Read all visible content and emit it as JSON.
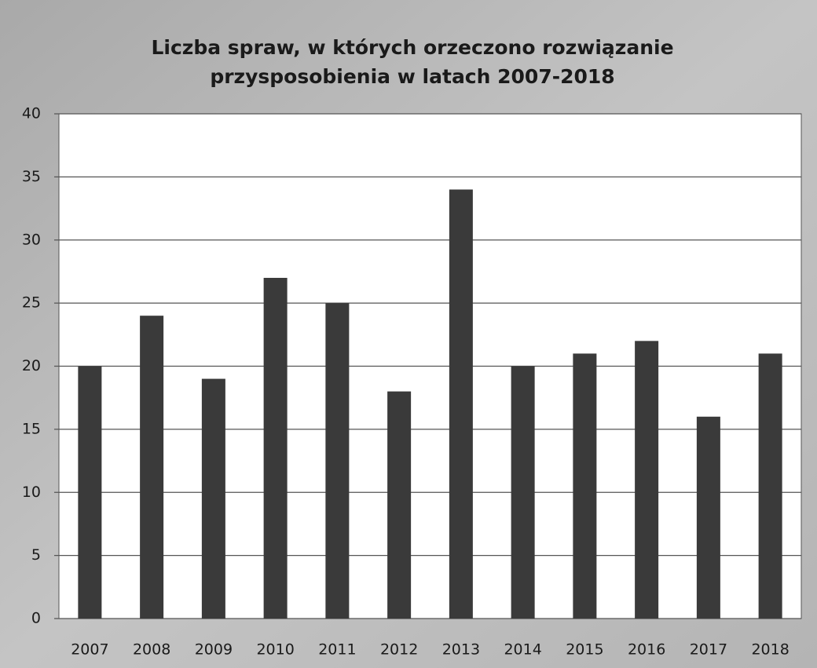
{
  "chart_data": {
    "type": "bar",
    "title": [
      "Liczba spraw, w których orzeczono rozwiązanie",
      "przysposobienia w latach 2007-2018"
    ],
    "categories": [
      "2007",
      "2008",
      "2009",
      "2010",
      "2011",
      "2012",
      "2013",
      "2014",
      "2015",
      "2016",
      "2017",
      "2018"
    ],
    "values": [
      20,
      24,
      19,
      27,
      25,
      18,
      34,
      20,
      21,
      22,
      16,
      21
    ],
    "color": "#3a3a3a",
    "ylim": [
      0,
      40
    ],
    "yticks": [
      0,
      5,
      10,
      15,
      20,
      25,
      30,
      35,
      40
    ],
    "grid": true
  }
}
